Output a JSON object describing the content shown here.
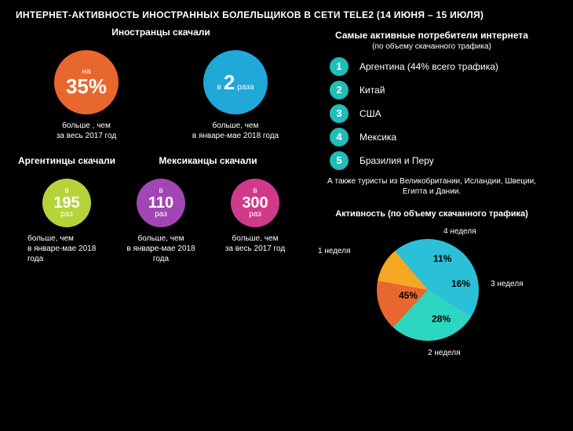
{
  "title": "ИНТЕРНЕТ-АКТИВНОСТЬ ИНОСТРАННЫХ БОЛЕЛЬЩИКОВ В СЕТИ TELE2 (14 ИЮНЯ – 15 ИЮЛЯ)",
  "colors": {
    "bg": "#000000",
    "orange": "#e8672f",
    "blue": "#1fa8d8",
    "lime": "#b6d33a",
    "purple": "#a346b5",
    "magenta": "#d13a8a",
    "teal": "#1fbeb8",
    "yellow": "#f5a623",
    "cyan": "#29c0d8",
    "aqua": "#2dd6c1"
  },
  "foreigners": {
    "label": "Иностранцы скачали",
    "circles": [
      {
        "prefix": "на",
        "value": "35%",
        "color": "#e8672f",
        "caption1": "больше , чем",
        "caption2": "за весь 2017 год"
      },
      {
        "prefix": "в",
        "value": "2",
        "suffix": "раза",
        "color": "#1fa8d8",
        "caption1": "больше, чем",
        "caption2": "в январе-мае 2018 года"
      }
    ]
  },
  "bottom": {
    "groups": [
      {
        "label": "Аргентинцы скачали",
        "circles": [
          {
            "prefix": "в",
            "value": "195",
            "suffix": "раз",
            "color": "#b6d33a",
            "caption1": "больше, чем",
            "caption2": "в январе-мае 2018 года"
          }
        ]
      },
      {
        "label": "Мексиканцы скачали",
        "circles": [
          {
            "prefix": "в",
            "value": "110",
            "suffix": "раз",
            "color": "#a346b5",
            "caption1": "больше, чем",
            "caption2": "в январе-мае 2018 года"
          },
          {
            "prefix": "в",
            "value": "300",
            "suffix": "раз",
            "color": "#d13a8a",
            "caption1": "больше, чем",
            "caption2": "за весь 2017 год"
          }
        ]
      }
    ]
  },
  "ranking": {
    "title": "Самые активные потребители интернета",
    "subtitle": "(по объему скачанного трафика)",
    "items": [
      {
        "n": "1",
        "label": "Аргентина (44% всего трафика)"
      },
      {
        "n": "2",
        "label": "Китай"
      },
      {
        "n": "3",
        "label": "США"
      },
      {
        "n": "4",
        "label": "Мексика"
      },
      {
        "n": "5",
        "label": "Бразилия и Перу"
      }
    ],
    "num_color": "#1fbeb8",
    "footer": "А также туристы из Великобритании, Исландии, Швеции, Египта и Дании."
  },
  "pie": {
    "title": "Активность (по объему скачанного трафика)",
    "slices": [
      {
        "label": "1 неделя",
        "value": 45,
        "display": "45%",
        "color": "#29c0d8"
      },
      {
        "label": "2 неделя",
        "value": 28,
        "display": "28%",
        "color": "#2dd6c1"
      },
      {
        "label": "3 неделя",
        "value": 16,
        "display": "16%",
        "color": "#e8672f"
      },
      {
        "label": "4 неделя",
        "value": 11,
        "display": "11%",
        "color": "#f5a623"
      }
    ]
  }
}
